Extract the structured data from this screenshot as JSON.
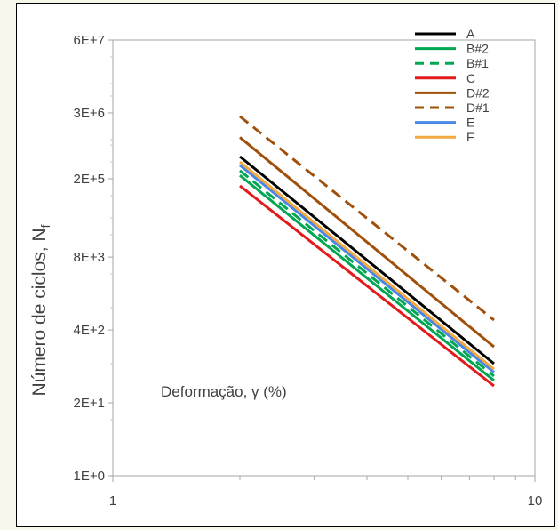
{
  "chart_data": {
    "type": "line",
    "title": "",
    "xlabel": "",
    "ylabel": "Número de ciclos, N",
    "ylabel_subscript": "f",
    "annotation": "Deformação, γ (%)",
    "x_scale": "log",
    "y_scale": "log",
    "xlim": [
      1,
      10
    ],
    "ylim": [
      1,
      60000000
    ],
    "x_ticks": [
      1,
      10
    ],
    "x_tick_labels": [
      "1",
      "10"
    ],
    "y_ticks": [
      1,
      20,
      400,
      8000,
      200000,
      3000000,
      60000000
    ],
    "y_tick_labels": [
      "1E+0",
      "2E+1",
      "4E+2",
      "8E+3",
      "2E+5",
      "3E+6",
      "6E+7"
    ],
    "grid": false,
    "legend_position": "top-right",
    "series": [
      {
        "name": "A",
        "color": "#000000",
        "dash": "solid",
        "x": [
          2,
          8
        ],
        "y": [
          500000,
          100
        ]
      },
      {
        "name": "B#2",
        "color": "#00a651",
        "dash": "solid",
        "x": [
          2,
          8
        ],
        "y": [
          230000,
          50
        ]
      },
      {
        "name": "B#1",
        "color": "#00a651",
        "dash": "dashed",
        "x": [
          2,
          8
        ],
        "y": [
          280000,
          60
        ]
      },
      {
        "name": "C",
        "color": "#e31a1c",
        "dash": "solid",
        "x": [
          2,
          8
        ],
        "y": [
          150000,
          40
        ]
      },
      {
        "name": "D#2",
        "color": "#a0500a",
        "dash": "solid",
        "x": [
          2,
          8
        ],
        "y": [
          1100000,
          200
        ]
      },
      {
        "name": "D#1",
        "color": "#a0500a",
        "dash": "dashed",
        "x": [
          2,
          8
        ],
        "y": [
          2600000,
          600
        ]
      },
      {
        "name": "E",
        "color": "#4a86e8",
        "dash": "solid",
        "x": [
          2,
          8
        ],
        "y": [
          350000,
          70
        ]
      },
      {
        "name": "F",
        "color": "#f4a940",
        "dash": "solid",
        "x": [
          2,
          8
        ],
        "y": [
          400000,
          80
        ]
      }
    ]
  }
}
